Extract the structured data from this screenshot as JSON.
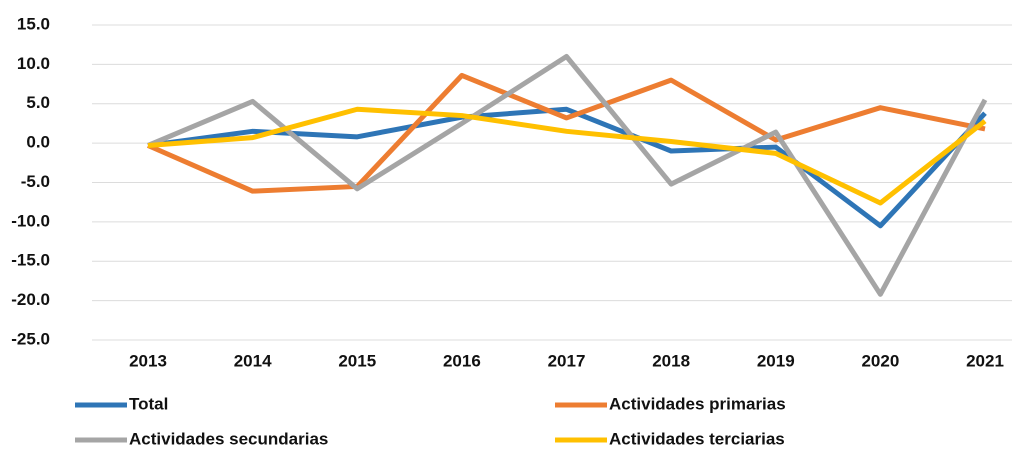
{
  "chart_data": {
    "type": "line",
    "x": [
      2013,
      2014,
      2015,
      2016,
      2017,
      2018,
      2019,
      2020,
      2021
    ],
    "series": [
      {
        "name": "Total",
        "color": "#2e75b6",
        "values": [
          -0.3,
          1.5,
          0.8,
          3.3,
          4.3,
          -1.0,
          -0.5,
          -10.5,
          3.8
        ]
      },
      {
        "name": "Actividades primarias",
        "color": "#ed7d31",
        "values": [
          -0.3,
          -6.1,
          -5.5,
          8.6,
          3.2,
          8.0,
          0.4,
          4.5,
          1.8
        ]
      },
      {
        "name": "Actividades secundarias",
        "color": "#a5a5a5",
        "values": [
          -0.3,
          5.3,
          -5.8,
          2.5,
          11.0,
          -5.2,
          1.4,
          -19.2,
          5.5
        ]
      },
      {
        "name": "Actividades terciarias",
        "color": "#ffc000",
        "values": [
          -0.3,
          0.7,
          4.3,
          3.5,
          1.5,
          0.2,
          -1.3,
          -7.6,
          2.8
        ]
      }
    ],
    "xlim": [
      2013,
      2021
    ],
    "ylim": [
      -25,
      15
    ],
    "yticks": [
      {
        "value": -25,
        "label": "-25.0"
      },
      {
        "value": -20,
        "label": "-20.0"
      },
      {
        "value": -15,
        "label": "-15.0"
      },
      {
        "value": -10,
        "label": "-10.0"
      },
      {
        "value": -5,
        "label": "-5.0"
      },
      {
        "value": 0,
        "label": "0.0"
      },
      {
        "value": 5,
        "label": "5.0"
      },
      {
        "value": 10,
        "label": "10.0"
      },
      {
        "value": 15,
        "label": "15.0"
      }
    ],
    "xticks": [
      2013,
      2014,
      2015,
      2016,
      2017,
      2018,
      2019,
      2020,
      2021
    ],
    "grid": true
  }
}
